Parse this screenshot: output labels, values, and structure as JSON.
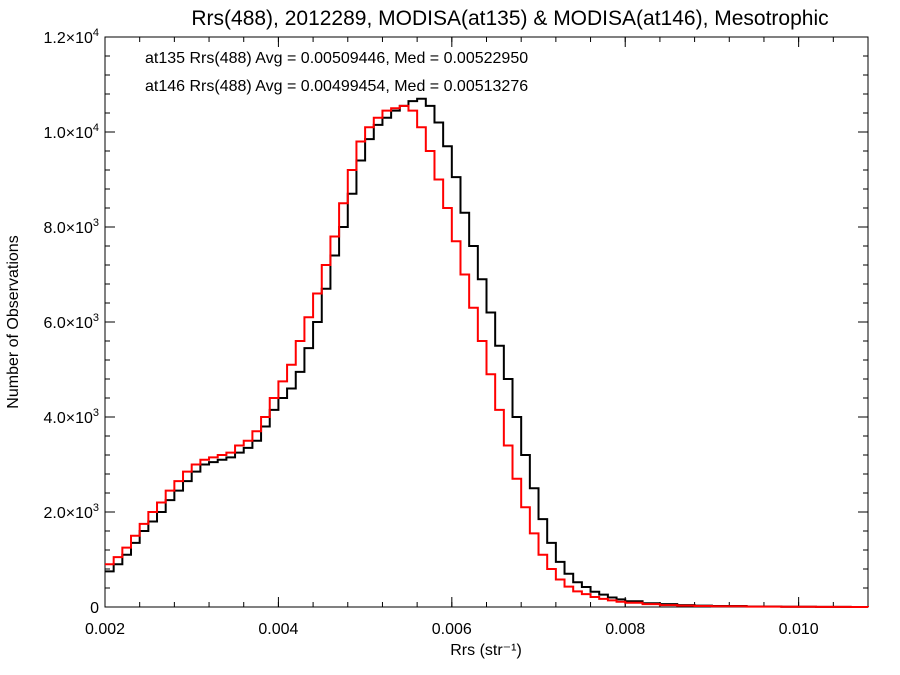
{
  "chart_data": {
    "type": "line",
    "title": "Rrs(488), 2012289, MODISA(at135) & MODISA(at146), Mesotrophic",
    "xlabel": "Rrs (str⁻¹)",
    "ylabel": "Number of Observations",
    "xlim": [
      0.002,
      0.0108
    ],
    "ylim": [
      0,
      12000
    ],
    "x_ticks": [
      {
        "value": 0.002,
        "label": "0.002"
      },
      {
        "value": 0.004,
        "label": "0.004"
      },
      {
        "value": 0.006,
        "label": "0.006"
      },
      {
        "value": 0.008,
        "label": "0.008"
      },
      {
        "value": 0.01,
        "label": "0.010"
      }
    ],
    "y_ticks": [
      {
        "value": 0,
        "mant": "0",
        "exp": ""
      },
      {
        "value": 2000,
        "mant": "2.0×10",
        "exp": "3"
      },
      {
        "value": 4000,
        "mant": "4.0×10",
        "exp": "3"
      },
      {
        "value": 6000,
        "mant": "6.0×10",
        "exp": "3"
      },
      {
        "value": 8000,
        "mant": "8.0×10",
        "exp": "3"
      },
      {
        "value": 10000,
        "mant": "1.0×10",
        "exp": "4"
      },
      {
        "value": 12000,
        "mant": "1.2×10",
        "exp": "4"
      }
    ],
    "annotations": [
      {
        "text": "at135 Rrs(488) Avg = 0.00509446, Med = 0.00522950",
        "color": "#000000"
      },
      {
        "text": "at146 Rrs(488) Avg = 0.00499454, Med = 0.00513276",
        "color": "#ff0000"
      }
    ],
    "series": [
      {
        "color": "#000000",
        "x": [
          0.002,
          0.0021,
          0.0022,
          0.0023,
          0.0024,
          0.0025,
          0.0026,
          0.0027,
          0.0028,
          0.0029,
          0.003,
          0.0031,
          0.0032,
          0.0033,
          0.0034,
          0.0035,
          0.0036,
          0.0037,
          0.0038,
          0.0039,
          0.004,
          0.0041,
          0.0042,
          0.0043,
          0.0044,
          0.0045,
          0.0046,
          0.0047,
          0.0048,
          0.0049,
          0.005,
          0.0051,
          0.0052,
          0.0053,
          0.0054,
          0.0055,
          0.0056,
          0.0057,
          0.0058,
          0.0059,
          0.006,
          0.0061,
          0.0062,
          0.0063,
          0.0064,
          0.0065,
          0.0066,
          0.0067,
          0.0068,
          0.0069,
          0.007,
          0.0071,
          0.0072,
          0.0073,
          0.0074,
          0.0075,
          0.0076,
          0.0077,
          0.0078,
          0.0079,
          0.008,
          0.0082,
          0.0084,
          0.0086,
          0.0088,
          0.009,
          0.0094,
          0.0098,
          0.0102,
          0.0106,
          0.0108
        ],
        "y": [
          750,
          900,
          1100,
          1350,
          1600,
          1800,
          2000,
          2250,
          2450,
          2650,
          2850,
          3000,
          3050,
          3100,
          3150,
          3250,
          3350,
          3500,
          3800,
          4150,
          4400,
          4600,
          4950,
          5450,
          6000,
          6700,
          7400,
          8000,
          8700,
          9400,
          9850,
          10150,
          10300,
          10450,
          10550,
          10650,
          10700,
          10550,
          10200,
          9700,
          9050,
          8300,
          7600,
          6900,
          6200,
          5500,
          4800,
          4000,
          3200,
          2500,
          1850,
          1350,
          950,
          700,
          520,
          420,
          320,
          260,
          200,
          160,
          120,
          80,
          60,
          40,
          30,
          20,
          10,
          5,
          2,
          1,
          0
        ]
      },
      {
        "color": "#ff0000",
        "x": [
          0.002,
          0.0021,
          0.0022,
          0.0023,
          0.0024,
          0.0025,
          0.0026,
          0.0027,
          0.0028,
          0.0029,
          0.003,
          0.0031,
          0.0032,
          0.0033,
          0.0034,
          0.0035,
          0.0036,
          0.0037,
          0.0038,
          0.0039,
          0.004,
          0.0041,
          0.0042,
          0.0043,
          0.0044,
          0.0045,
          0.0046,
          0.0047,
          0.0048,
          0.0049,
          0.005,
          0.0051,
          0.0052,
          0.0053,
          0.0054,
          0.0055,
          0.0056,
          0.0057,
          0.0058,
          0.0059,
          0.006,
          0.0061,
          0.0062,
          0.0063,
          0.0064,
          0.0065,
          0.0066,
          0.0067,
          0.0068,
          0.0069,
          0.007,
          0.0071,
          0.0072,
          0.0073,
          0.0074,
          0.0075,
          0.0076,
          0.0077,
          0.0078,
          0.0079,
          0.008,
          0.0082,
          0.0084,
          0.0086,
          0.0088,
          0.009,
          0.0094,
          0.0098,
          0.0102,
          0.0106,
          0.0108
        ],
        "y": [
          900,
          1050,
          1250,
          1500,
          1750,
          2000,
          2200,
          2450,
          2650,
          2850,
          3000,
          3100,
          3150,
          3200,
          3250,
          3400,
          3500,
          3700,
          4000,
          4400,
          4750,
          5100,
          5600,
          6100,
          6600,
          7200,
          7800,
          8500,
          9200,
          9800,
          10100,
          10300,
          10450,
          10500,
          10550,
          10450,
          10100,
          9600,
          9000,
          8400,
          7700,
          7000,
          6300,
          5600,
          4900,
          4150,
          3400,
          2700,
          2100,
          1550,
          1100,
          800,
          580,
          430,
          330,
          270,
          210,
          170,
          140,
          110,
          90,
          60,
          40,
          30,
          20,
          15,
          8,
          4,
          2,
          1,
          0
        ]
      }
    ]
  }
}
